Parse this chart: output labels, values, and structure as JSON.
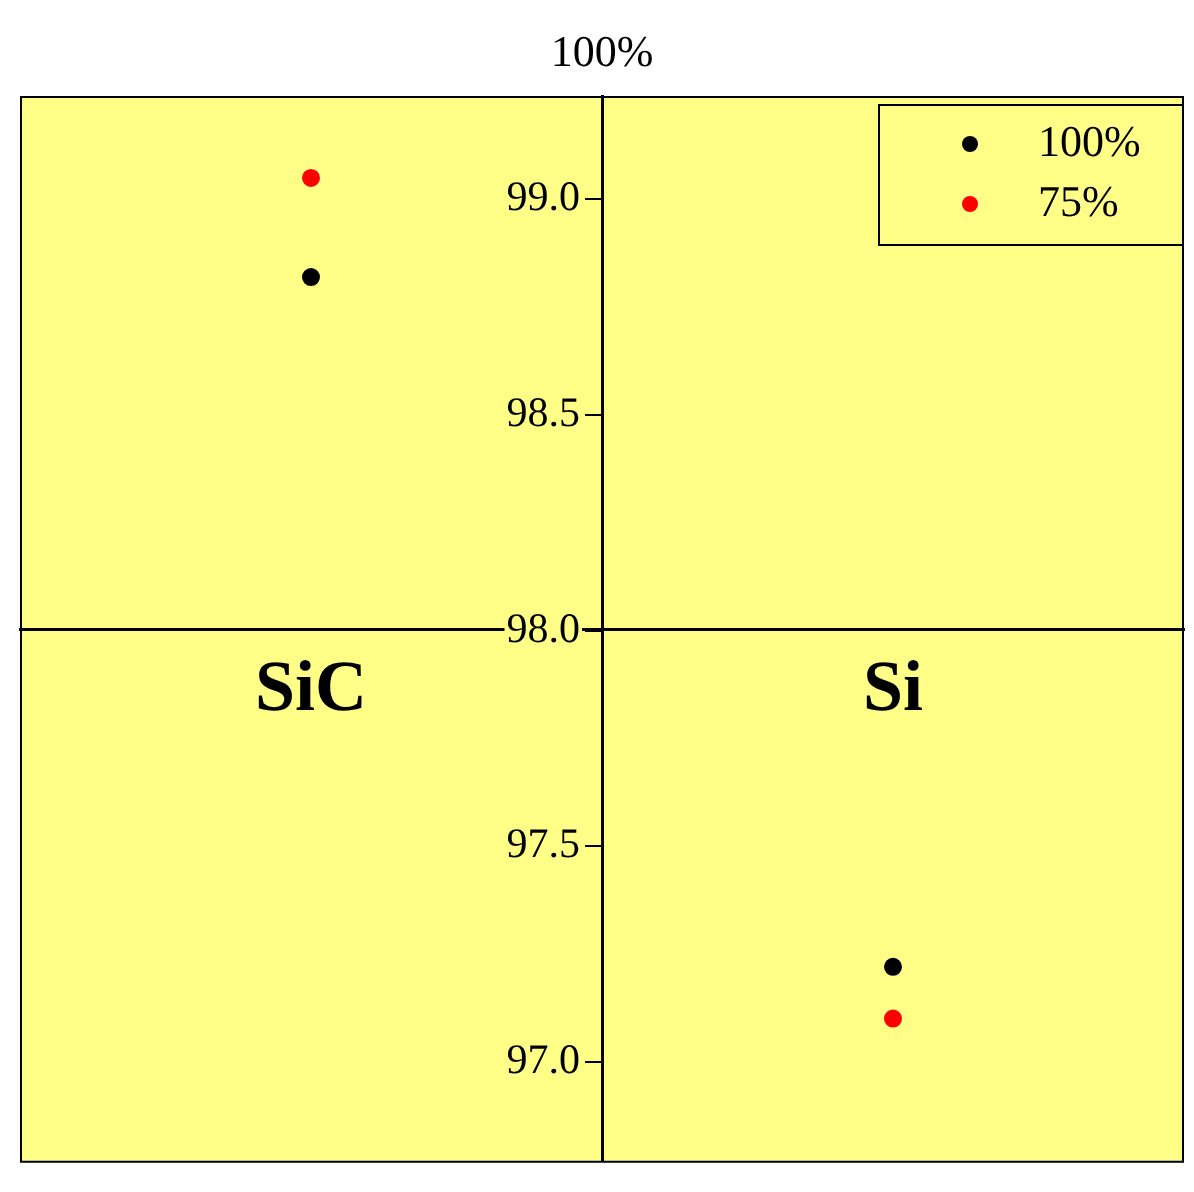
{
  "chart_data": {
    "type": "scatter",
    "title": "100%",
    "categories": [
      "SiC",
      "Si"
    ],
    "series": [
      {
        "name": "100%",
        "color": "#000000",
        "values": [
          98.82,
          97.22
        ]
      },
      {
        "name": "75%",
        "color": "#ff0000",
        "values": [
          99.05,
          97.1
        ]
      }
    ],
    "ylim": [
      96.77,
      99.24
    ],
    "yticks": [
      {
        "value": 97,
        "label": "97.0"
      },
      {
        "value": 97.5,
        "label": "97.5"
      },
      {
        "value": 98,
        "label": "98.0"
      },
      {
        "value": 98.5,
        "label": "98.5"
      },
      {
        "value": 99,
        "label": "99.0"
      }
    ],
    "grid": false,
    "legend": "top right",
    "marker": "circle"
  }
}
